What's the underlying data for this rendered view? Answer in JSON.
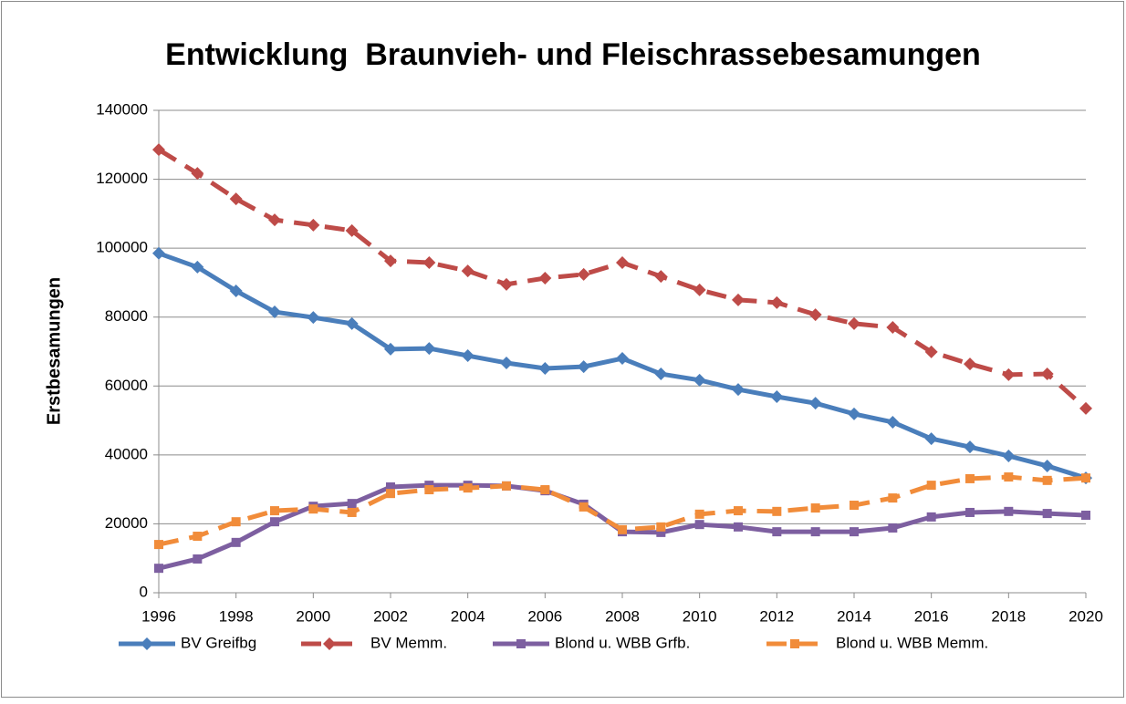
{
  "chart_data": {
    "type": "line",
    "title": "Entwicklung  Braunvieh- und Fleischrassebesamungen",
    "y_label": "Erstbesamungen",
    "x": [
      1996,
      1997,
      1998,
      1999,
      2000,
      2001,
      2002,
      2003,
      2004,
      2005,
      2006,
      2007,
      2008,
      2009,
      2010,
      2011,
      2012,
      2013,
      2014,
      2015,
      2016,
      2017,
      2018,
      2019,
      2020
    ],
    "xlim": [
      1996,
      2020
    ],
    "xticks": [
      1996,
      1998,
      2000,
      2002,
      2004,
      2006,
      2008,
      2010,
      2012,
      2014,
      2016,
      2018,
      2020
    ],
    "ylim": [
      0,
      140000
    ],
    "yticks": [
      0,
      20000,
      40000,
      60000,
      80000,
      100000,
      120000,
      140000
    ],
    "grid": true,
    "legend": "bottom",
    "series": [
      {
        "name": "BV Greifbg",
        "color": "#4a7ebb",
        "marker": "diamond",
        "dashed": false,
        "values": [
          98500,
          94500,
          87600,
          81500,
          79900,
          78100,
          70700,
          70900,
          68800,
          66700,
          65100,
          65600,
          68000,
          63500,
          61700,
          59000,
          56900,
          55000,
          51900,
          49500,
          44700,
          42300,
          39700,
          36800,
          33300
        ]
      },
      {
        "name": "BV Memm.",
        "color": "#be4b48",
        "marker": "diamond",
        "dashed": true,
        "values": [
          128600,
          121700,
          114300,
          108200,
          106700,
          105100,
          96300,
          95800,
          93400,
          89500,
          91300,
          92400,
          95800,
          91800,
          87900,
          85000,
          84200,
          80700,
          78100,
          77000,
          69900,
          66400,
          63300,
          63500,
          53500
        ]
      },
      {
        "name": "Blond u. WBB Grfb.",
        "color": "#7d5fa0",
        "marker": "square",
        "dashed": false,
        "values": [
          7100,
          9800,
          14600,
          20600,
          25100,
          25900,
          30700,
          31200,
          31200,
          31000,
          29600,
          25700,
          17700,
          17500,
          19800,
          19100,
          17700,
          17700,
          17700,
          18800,
          22000,
          23300,
          23600,
          23000,
          22500
        ]
      },
      {
        "name": "Blond u. WBB Memm.",
        "color": "#f18c3a",
        "marker": "square",
        "dashed": true,
        "values": [
          14000,
          16400,
          20600,
          23800,
          24300,
          23300,
          28800,
          29900,
          30400,
          31000,
          29900,
          24900,
          18300,
          19100,
          22800,
          23800,
          23600,
          24600,
          25400,
          27500,
          31200,
          33100,
          33600,
          32600,
          33300
        ]
      }
    ]
  }
}
